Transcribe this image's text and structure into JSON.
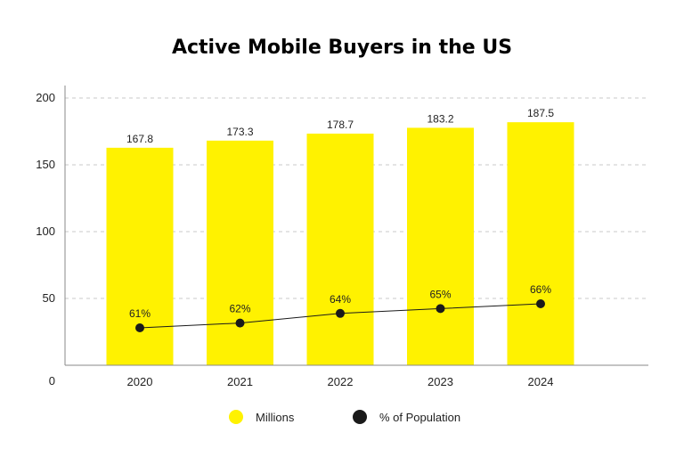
{
  "chart_data": {
    "type": "bar",
    "title": "Active Mobile Buyers in the US",
    "categories": [
      "2020",
      "2021",
      "2022",
      "2023",
      "2024"
    ],
    "y_ticks": [
      "0",
      "50",
      "100",
      "150",
      "200"
    ],
    "ylim": [
      0,
      200
    ],
    "grid": true,
    "series": [
      {
        "name": "Millions",
        "kind": "bar",
        "color": "#FFF200",
        "values": [
          167.8,
          173.3,
          178.7,
          183.2,
          187.5
        ],
        "labels": [
          "167.8",
          "173.3",
          "178.7",
          "183.2",
          "187.5"
        ]
      },
      {
        "name": "% of Population",
        "kind": "line",
        "color": "#1a1a1a",
        "values": [
          61,
          62,
          64,
          65,
          66
        ],
        "labels": [
          "61%",
          "62%",
          "64%",
          "65%",
          "66%"
        ]
      }
    ],
    "legend": [
      "Millions",
      "% of Population"
    ],
    "legend_position": "bottom"
  }
}
